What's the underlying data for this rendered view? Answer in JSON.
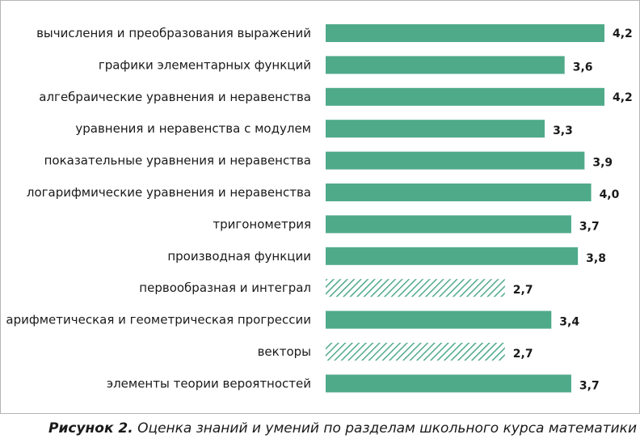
{
  "chart_data": {
    "type": "bar",
    "orientation": "horizontal",
    "categories": [
      "вычисления и преобразования выражений",
      "графики элементарных функций",
      "алгебраические уравнения и неравенства",
      "уравнения и неравенства с модулем",
      "показательные уравнения и неравенства",
      "логарифмические уравнения и неравенства",
      "тригонометрия",
      "производная функции",
      "первообразная и интеграл",
      "арифметическая и геометрическая прогрессии",
      "векторы",
      "элементы теории вероятностей"
    ],
    "values": [
      4.2,
      3.6,
      4.2,
      3.3,
      3.9,
      4.0,
      3.7,
      3.8,
      2.7,
      3.4,
      2.7,
      3.7
    ],
    "value_labels": [
      "4,2",
      "3,6",
      "4,2",
      "3,3",
      "3,9",
      "4,0",
      "3,7",
      "3,8",
      "2,7",
      "3,4",
      "2,7",
      "3,7"
    ],
    "patterns": [
      "solid",
      "solid",
      "solid",
      "solid",
      "solid",
      "solid",
      "solid",
      "solid",
      "hatched",
      "solid",
      "hatched",
      "solid"
    ],
    "xlim": [
      0,
      4.2
    ],
    "grid": false,
    "colors": {
      "bar": "#4faa8a",
      "hatch": "#4faa8a",
      "hatch_bg": "#ffffff"
    }
  },
  "caption": {
    "bold": "Рисунок 2.",
    "text": " Оценка знаний и умений по разделам школьного курса математики"
  }
}
